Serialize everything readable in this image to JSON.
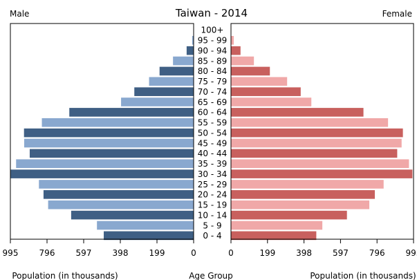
{
  "chart_data": {
    "type": "bar",
    "title": "Taiwan - 2014",
    "left_label": "Male",
    "right_label": "Female",
    "xlabel_left": "Population (in thousands)",
    "xlabel_center": "Age Group",
    "xlabel_right": "Population (in thousands)",
    "xlim": [
      0,
      995
    ],
    "xticks": [
      995,
      796,
      597,
      398,
      199,
      0
    ],
    "xticks_right": [
      0,
      199,
      398,
      597,
      796,
      995
    ],
    "categories": [
      "100+",
      "95 - 99",
      "90 - 94",
      "85 - 89",
      "80 - 84",
      "75 - 79",
      "70 - 74",
      "65 - 69",
      "60 - 64",
      "55 - 59",
      "50 - 54",
      "45 - 49",
      "40 - 44",
      "35 - 39",
      "30 - 34",
      "25 - 29",
      "20 - 24",
      "15 - 19",
      "10 - 14",
      "5 - 9",
      "0 - 4"
    ],
    "series": [
      {
        "name": "Male",
        "values": [
          1,
          8,
          38,
          112,
          185,
          242,
          322,
          394,
          675,
          824,
          921,
          920,
          890,
          964,
          993,
          840,
          815,
          790,
          665,
          525,
          488
        ],
        "colors": [
          "#3f5f84",
          "#89a8cf"
        ]
      },
      {
        "name": "Female",
        "values": [
          2,
          15,
          52,
          125,
          212,
          306,
          380,
          438,
          722,
          856,
          937,
          930,
          906,
          970,
          989,
          832,
          784,
          754,
          632,
          498,
          465
        ],
        "colors": [
          "#c8605e",
          "#f0a8a8"
        ]
      }
    ]
  }
}
